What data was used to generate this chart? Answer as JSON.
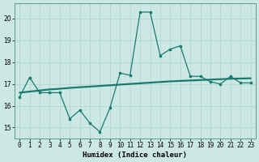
{
  "x": [
    0,
    1,
    2,
    3,
    4,
    5,
    6,
    7,
    8,
    9,
    10,
    11,
    12,
    13,
    14,
    15,
    16,
    17,
    18,
    19,
    20,
    21,
    22,
    23
  ],
  "y_main": [
    16.4,
    17.3,
    16.6,
    16.6,
    16.6,
    15.4,
    15.8,
    15.2,
    14.8,
    15.9,
    17.5,
    17.4,
    20.3,
    20.3,
    18.3,
    18.6,
    18.75,
    17.35,
    17.35,
    17.1,
    17.0,
    17.35,
    17.05,
    17.05
  ],
  "y_trend": [
    16.6,
    16.65,
    16.7,
    16.75,
    16.78,
    16.82,
    16.85,
    16.88,
    16.91,
    16.94,
    16.97,
    17.0,
    17.03,
    17.06,
    17.09,
    17.12,
    17.14,
    17.16,
    17.18,
    17.2,
    17.22,
    17.24,
    17.25,
    17.26
  ],
  "line_color": "#1a7a6e",
  "bg_color": "#cce8e4",
  "grid_color": "#b8d8d4",
  "xlabel": "Humidex (Indice chaleur)",
  "ylim": [
    14.5,
    20.7
  ],
  "xlim": [
    -0.5,
    23.5
  ],
  "yticks": [
    15,
    16,
    17,
    18,
    19,
    20
  ],
  "tick_fontsize": 5.5,
  "xlabel_fontsize": 6.5
}
